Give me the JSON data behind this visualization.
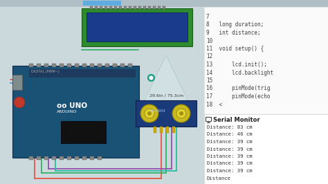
{
  "bg_color": "#ccd9dc",
  "left_panel_bg": "#ccd9dc",
  "right_panel_bg": "#f0f0f0",
  "code_bg": "#fafafa",
  "lcd_bg": "#1a3a8c",
  "lcd_frame": "#2d8a2d",
  "arduino_body": "#1a5276",
  "sensor_body": "#1a3a7a",
  "cone_color": "#d5e8e8",
  "code_lines": [
    "7",
    "8   long duration;",
    "9   int distance;",
    "10",
    "11  void setup() {",
    "12",
    "13      lcd.init();",
    "14      lcd.backlight",
    "15",
    "16      pinMode(trig",
    "17      pinMode(echo",
    "18  <"
  ],
  "serial_title": "Serial Monitor",
  "serial_lines": [
    "Distance: 83 cm",
    "Distance: 46 cm",
    "Distance: 39 cm",
    "Distance: 39 cm",
    "Distance: 39 cm",
    "Distance: 39 cm",
    "Distance: 39 cm",
    "Distance"
  ],
  "sensor_label": "29.6in / 75.3cm",
  "cursor_color": "#16a085",
  "wire_segments": [
    [
      15,
      115,
      118,
      115,
      "#e74c3c"
    ],
    [
      15,
      120,
      118,
      120,
      "#3498db"
    ],
    [
      118,
      67,
      200,
      67,
      "#3498db"
    ],
    [
      118,
      72,
      200,
      72,
      "#27ae60"
    ],
    [
      50,
      230,
      50,
      258,
      "#e74c3c"
    ],
    [
      50,
      258,
      233,
      258,
      "#e74c3c"
    ],
    [
      233,
      258,
      233,
      183,
      "#e74c3c"
    ],
    [
      60,
      230,
      60,
      250,
      "#27ae60"
    ],
    [
      60,
      250,
      240,
      250,
      "#27ae60"
    ],
    [
      240,
      250,
      240,
      183,
      "#27ae60"
    ],
    [
      70,
      230,
      70,
      244,
      "#8e44ad"
    ],
    [
      70,
      244,
      248,
      244,
      "#8e44ad"
    ],
    [
      248,
      244,
      248,
      183,
      "#8e44ad"
    ],
    [
      80,
      230,
      80,
      247,
      "#1abc9c"
    ],
    [
      80,
      247,
      255,
      247,
      "#1abc9c"
    ],
    [
      255,
      247,
      255,
      183,
      "#1abc9c"
    ]
  ]
}
